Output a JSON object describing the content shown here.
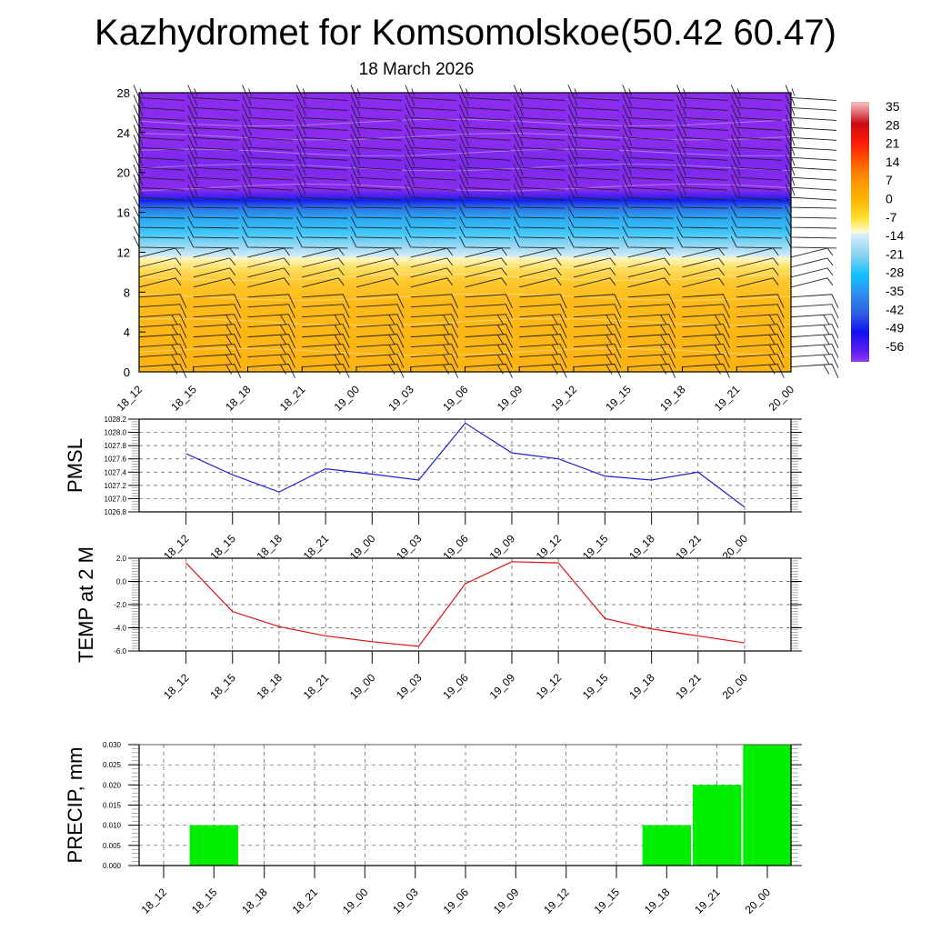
{
  "header": {
    "title": "Kazhydromet for Komsomolskoe(50.42 60.47)",
    "date": "18 March 2026"
  },
  "chart_data": [
    {
      "type": "heatmap",
      "name": "vertical-profile",
      "title": "",
      "xlabel": "",
      "ylabel": "",
      "x": [
        "18_12",
        "18_15",
        "18_18",
        "18_21",
        "19_00",
        "19_03",
        "19_06",
        "19_09",
        "19_12",
        "19_15",
        "19_18",
        "19_21",
        "20_00"
      ],
      "y_ticks": [
        0,
        4,
        8,
        12,
        16,
        20,
        24,
        28
      ],
      "ylim": [
        0,
        28
      ],
      "description": "Temperature cross-section (filled contours) with wind barbs",
      "temperature_bands": [
        {
          "from": 0,
          "to": 8,
          "value_approx": 2,
          "color": "#fdb813"
        },
        {
          "from": 8,
          "to": 11.5,
          "value_approx": -6,
          "color": "#fed24a"
        },
        {
          "from": 11.5,
          "to": 12.5,
          "value_approx": -15,
          "color": "#c4e6f7"
        },
        {
          "from": 12.5,
          "to": 16,
          "value_approx": -28,
          "color": "#22bff5"
        },
        {
          "from": 16,
          "to": 18,
          "value_approx": -50,
          "color": "#1a2ef0"
        },
        {
          "from": 18,
          "to": 28,
          "value_approx": -58,
          "color": "#8a2bef"
        }
      ],
      "colorbar": {
        "labels": [
          "35",
          "28",
          "21",
          "14",
          "7",
          "0",
          "-7",
          "-14",
          "-21",
          "-28",
          "-35",
          "-42",
          "-49",
          "-56"
        ],
        "stops": [
          {
            "v": 35,
            "color": "#f4b3b3"
          },
          {
            "v": 28,
            "color": "#c80a14"
          },
          {
            "v": 21,
            "color": "#ff1a0a"
          },
          {
            "v": 14,
            "color": "#ff5a00"
          },
          {
            "v": 7,
            "color": "#ff9400"
          },
          {
            "v": 0,
            "color": "#ffb400"
          },
          {
            "v": -7,
            "color": "#ffe033"
          },
          {
            "v": -12,
            "color": "#fffbd0"
          },
          {
            "v": -13,
            "color": "#d6eefa"
          },
          {
            "v": -21,
            "color": "#86d0f0"
          },
          {
            "v": -28,
            "color": "#12c0ff"
          },
          {
            "v": -35,
            "color": "#2f8cf0"
          },
          {
            "v": -42,
            "color": "#3060e0"
          },
          {
            "v": -49,
            "color": "#1010f0"
          },
          {
            "v": -56,
            "color": "#5a1ef0"
          },
          {
            "v": -60,
            "color": "#8f3cf0"
          }
        ]
      },
      "wind_barb_levels": [
        0.5,
        1.5,
        2.5,
        3.5,
        4.5,
        5.5,
        6.5,
        7.5,
        8.5,
        9.5,
        10.5,
        11.5,
        12.5,
        13.5,
        14.5,
        15.5,
        16.5,
        17.5,
        18.5,
        19.5,
        20.5,
        21.5,
        22.5,
        23.5,
        24.5,
        25.5,
        26.5,
        27.5
      ]
    },
    {
      "type": "line",
      "name": "pmsl",
      "ylabel": "PMSL",
      "x": [
        "18_12",
        "18_15",
        "18_18",
        "18_21",
        "19_00",
        "19_03",
        "19_06",
        "19_09",
        "19_12",
        "19_15",
        "19_18",
        "19_21",
        "20_00"
      ],
      "values": [
        1027.68,
        1027.36,
        1027.1,
        1027.45,
        1027.37,
        1027.28,
        1028.14,
        1027.69,
        1027.6,
        1027.34,
        1027.28,
        1027.4,
        1026.87
      ],
      "ylim": [
        1026.8,
        1028.2
      ],
      "y_ticks": [
        "1026.8",
        "1027.0",
        "1027.2",
        "1027.4",
        "1027.6",
        "1027.8",
        "1028.0",
        "1028.2"
      ],
      "color": "#1f1fd6",
      "grid": true
    },
    {
      "type": "line",
      "name": "temp2m",
      "ylabel": "TEMP at 2 M",
      "x": [
        "18_12",
        "18_15",
        "18_18",
        "18_21",
        "19_00",
        "19_03",
        "19_06",
        "19_09",
        "19_12",
        "19_15",
        "19_18",
        "19_21",
        "20_00"
      ],
      "values": [
        1.6,
        -2.6,
        -3.9,
        -4.7,
        -5.2,
        -5.6,
        -0.2,
        1.7,
        1.6,
        -3.2,
        -4.1,
        -4.7,
        -5.3
      ],
      "ylim": [
        -6.0,
        2.0
      ],
      "y_ticks": [
        "-6.0",
        "-4.0",
        "-2.0",
        "0.0",
        "2.0"
      ],
      "color": "#e01010",
      "grid": true
    },
    {
      "type": "bar",
      "name": "precip",
      "ylabel": "PRECIP, mm",
      "categories": [
        "18_12",
        "18_15",
        "18_18",
        "18_21",
        "19_00",
        "19_03",
        "19_06",
        "19_09",
        "19_12",
        "19_15",
        "19_18",
        "19_21",
        "20_00"
      ],
      "values": [
        0,
        0.01,
        0,
        0,
        0,
        0,
        0,
        0,
        0,
        0,
        0.01,
        0.02,
        0.03
      ],
      "ylim": [
        0,
        0.03
      ],
      "y_ticks": [
        "0.000",
        "0.005",
        "0.010",
        "0.015",
        "0.020",
        "0.025",
        "0.030"
      ],
      "color": "#00ee00",
      "grid": true
    }
  ]
}
